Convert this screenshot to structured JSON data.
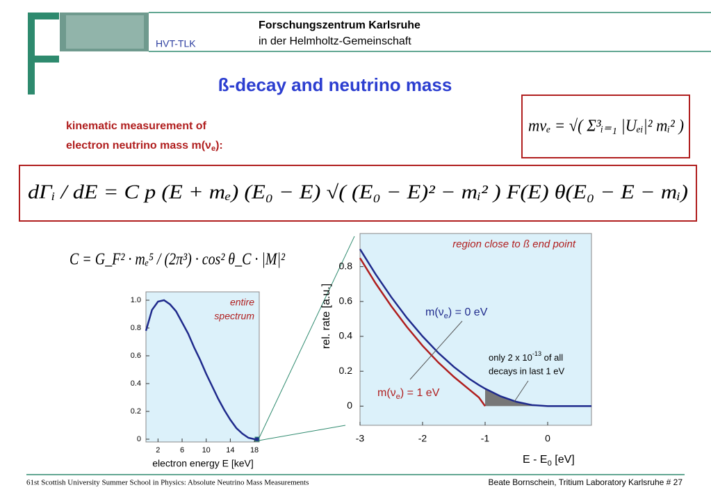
{
  "header": {
    "org": "Forschungszentrum Karlsruhe",
    "org_sub": "in  der  Helmholtz-Gemeinschaft",
    "unit": "HVT-TLK"
  },
  "title": "ß-decay and neutrino mass",
  "intro": {
    "line1": "kinematic measurement of",
    "line2": {
      "pre": "electron neutrino mass m(ν",
      "sub": "e",
      "post": "):"
    }
  },
  "equations": {
    "mass": "mνₑ = √( Σ³ᵢ₌₁ |Uₑᵢ|² mᵢ² )",
    "rate": "dΓᵢ / dE = C p (E + mₑ) (E₀ − E) √( (E₀ − E)² − mᵢ² ) F(E) θ(E₀ − E − mᵢ)",
    "constant": "C = G_F² · mₑ⁵ / (2π³) · cos² θ_C · |M|²"
  },
  "chart_data": [
    {
      "type": "line",
      "title": "entire spectrum",
      "title_lines": [
        "entire",
        "spectrum"
      ],
      "xlabel": "electron energy E [keV]",
      "x": [
        0,
        1,
        2,
        3,
        4,
        5,
        6,
        7,
        8,
        9,
        10,
        11,
        12,
        13,
        14,
        15,
        16,
        17,
        18,
        18.6
      ],
      "series": [
        {
          "color": "#1f2a8c",
          "values": [
            0.78,
            0.93,
            0.99,
            1.0,
            0.97,
            0.92,
            0.84,
            0.76,
            0.66,
            0.57,
            0.47,
            0.38,
            0.29,
            0.21,
            0.14,
            0.08,
            0.04,
            0.01,
            0.0,
            0
          ]
        }
      ],
      "xlim": [
        0,
        18.8
      ],
      "ylim": [
        -0.02,
        1.06
      ],
      "xticks": [
        2,
        6,
        10,
        14,
        18
      ],
      "yticks": [
        0,
        0.2,
        0.4,
        0.6,
        0.8,
        {
          "value": 1,
          "label": "1.0"
        }
      ]
    },
    {
      "type": "line",
      "title": "region close to ß end point",
      "xlabel": {
        "pre": "E - E",
        "sub": "0",
        "post": " [eV]"
      },
      "ylabel": "rel. rate [a.u.]",
      "x": [
        -3,
        -2.75,
        -2.5,
        -2.25,
        -2,
        -1.75,
        -1.5,
        -1.25,
        -1.1,
        -1,
        -0.75,
        -0.5,
        -0.25,
        0,
        0.7
      ],
      "series": [
        {
          "name": {
            "pre": "m(ν",
            "sub": "e",
            "post": ") = 0 eV"
          },
          "color": "#1f2a8c",
          "values": [
            0.9,
            0.756,
            0.625,
            0.506,
            0.4,
            0.306,
            0.225,
            0.156,
            0.121,
            0.1,
            0.056,
            0.025,
            0.006,
            0,
            0
          ]
        },
        {
          "name": {
            "pre": "m(ν",
            "sub": "e",
            "post": ") = 1 eV"
          },
          "color": "#b01e1e",
          "values": [
            0.849,
            0.704,
            0.573,
            0.454,
            0.346,
            0.251,
            0.168,
            0.094,
            0.05,
            0,
            null,
            null,
            null,
            null,
            null
          ]
        }
      ],
      "annotation": {
        "pre": "only 2 x 10",
        "sup": "-13",
        "post": " of all",
        "line2": "decays in last 1 eV"
      },
      "xlim": [
        -3,
        0.7
      ],
      "ylim": [
        -0.11,
        0.99
      ],
      "xticks": [
        -3,
        -2,
        -1,
        0
      ],
      "yticks": [
        0,
        0.2,
        0.4,
        0.6,
        0.8
      ]
    }
  ],
  "footer": {
    "left": "61st Scottish University Summer School in Physics: Absolute Neutrino Mass Measurements",
    "right": "Beate Bornschein, Tritium Laboratory Karlsruhe   # 27"
  }
}
